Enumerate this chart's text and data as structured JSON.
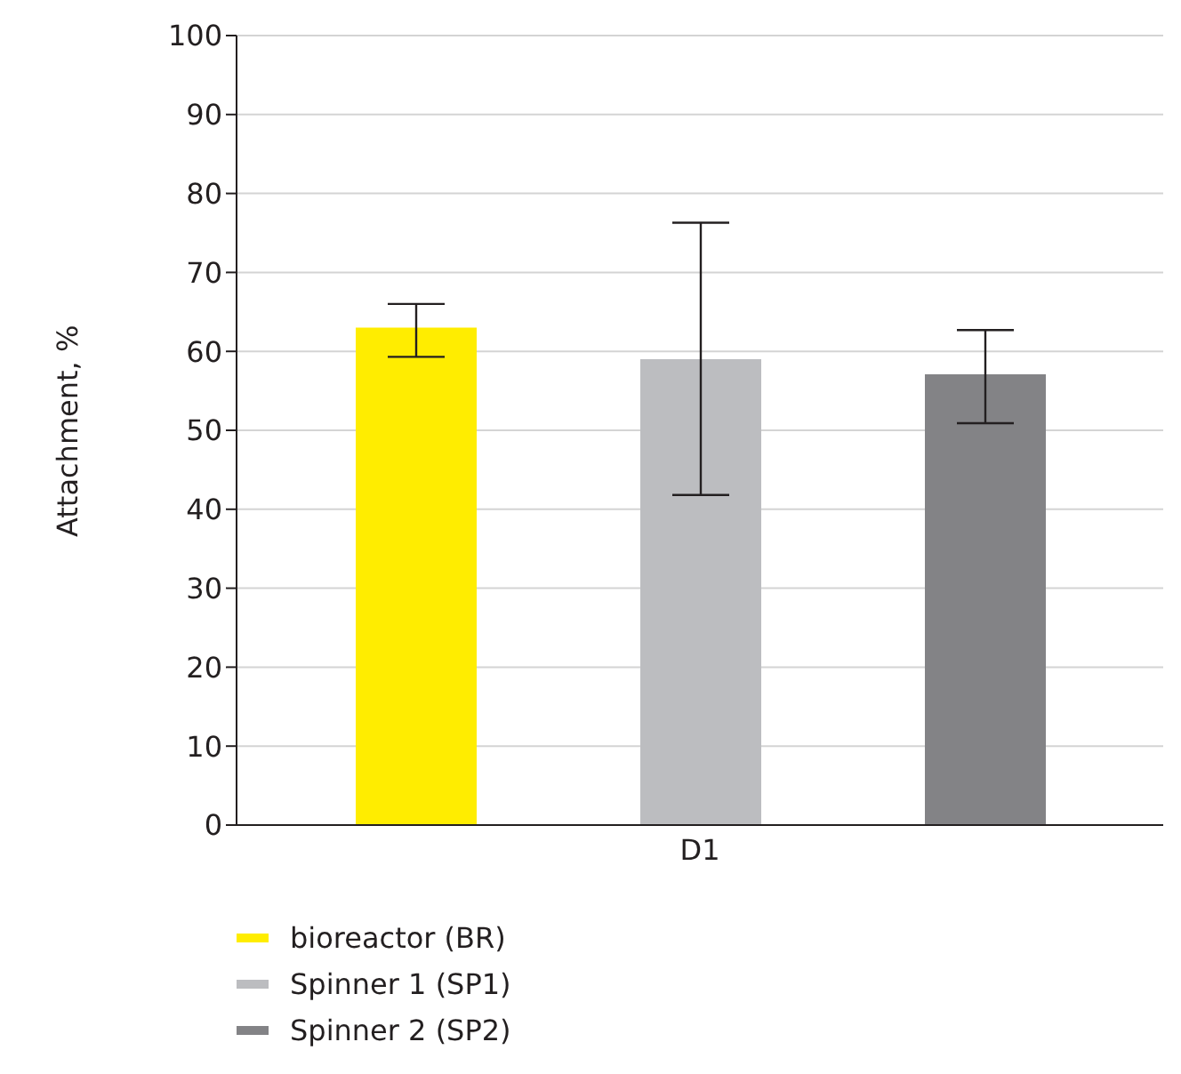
{
  "chart_data": {
    "type": "bar",
    "ylabel": "Attachment, %",
    "categories": [
      "D1"
    ],
    "series": [
      {
        "name": "bioreactor (BR)",
        "color": "#ffed00",
        "values": [
          63
        ],
        "errors": [
          [
            59.3,
            66
          ]
        ]
      },
      {
        "name": "Spinner 1 (SP1)",
        "color": "#bcbdc0",
        "values": [
          59
        ],
        "errors": [
          [
            41.8,
            76.3
          ]
        ]
      },
      {
        "name": "Spinner 2 (SP2)",
        "color": "#838386",
        "values": [
          57.1
        ],
        "errors": [
          [
            50.9,
            62.7
          ]
        ]
      }
    ],
    "ylim": [
      0,
      100
    ],
    "yticks": [
      0,
      10,
      20,
      30,
      40,
      50,
      60,
      70,
      80,
      90,
      100
    ],
    "grid": "y",
    "legend": "bottom"
  }
}
